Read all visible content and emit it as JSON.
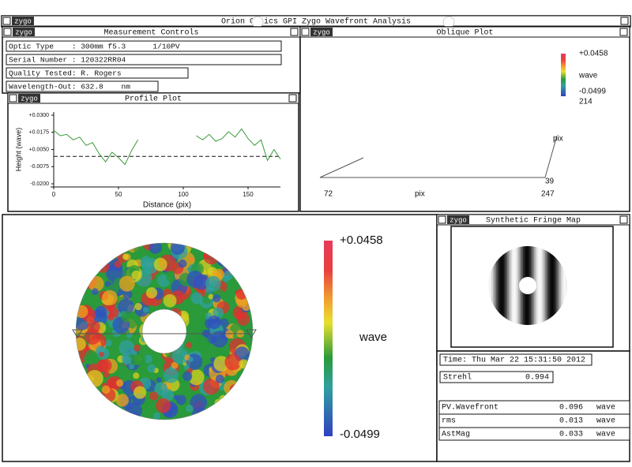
{
  "header": {
    "title": "Orion Optics GPI Zygo Wavefront Analysis",
    "logo": "zygo"
  },
  "measurement_controls": {
    "title": "Measurement Controls",
    "fields": [
      "Optic Type    : 300mm f5.3      1/10PV",
      "Serial Number : 120322RR04",
      "Quality Tested: R. Rogers",
      "Wavelength-Out: 632.8    nm"
    ]
  },
  "chart_data": {
    "type": "line",
    "title": "Profile Plot",
    "x_label": "Distance (pix)",
    "y_label": "Height (wave)",
    "color": "#3a9a3a",
    "x": [
      0,
      5,
      10,
      15,
      20,
      25,
      30,
      35,
      40,
      45,
      50,
      55,
      60,
      65,
      70,
      75,
      80,
      85,
      90,
      95,
      100,
      105,
      110,
      115,
      120,
      125,
      130,
      135,
      140,
      145,
      150,
      155,
      160,
      165,
      170,
      175
    ],
    "values": [
      0.019,
      0.015,
      0.016,
      0.012,
      0.014,
      0.008,
      0.01,
      0.002,
      -0.004,
      0.003,
      -0.001,
      -0.006,
      0.004,
      0.012,
      null,
      null,
      null,
      null,
      null,
      null,
      null,
      null,
      0.015,
      0.012,
      0.016,
      0.011,
      0.013,
      0.018,
      0.014,
      0.02,
      0.013,
      0.008,
      0.012,
      -0.003,
      0.005,
      -0.002
    ],
    "xlim": [
      0,
      175
    ],
    "ylim": [
      -0.02,
      0.03
    ],
    "xticks": [
      0,
      50,
      100,
      150
    ],
    "yticks": [
      {
        "value": 0.03,
        "label": "+0.0300"
      },
      {
        "value": 0.0175,
        "label": "+0.0175"
      },
      {
        "value": 0.005,
        "label": "+0.0050"
      },
      {
        "value": -0.0075,
        "label": "-0.0075"
      },
      {
        "value": -0.02,
        "label": "-0.0200"
      }
    ]
  },
  "oblique_plot": {
    "title": "Oblique Plot",
    "scale_max": "+0.0458",
    "scale_unit": "wave",
    "scale_min": "-0.0499",
    "y_max": "214",
    "y_label": "pix",
    "y_min": "39",
    "x_min": "72",
    "x_label": "pix",
    "x_max": "247"
  },
  "surface_map": {
    "scale_max": "+0.0458",
    "scale_unit": "wave",
    "scale_min": "-0.0499"
  },
  "fringe_map": {
    "title": "Synthetic Fringe Map"
  },
  "results": {
    "time": "Time: Thu Mar 22 15:31:50 2012",
    "strehl": {
      "label": "Strehl",
      "value": "0.994"
    },
    "rows": [
      {
        "label": "PV.Wavefront",
        "value": "0.096",
        "unit": "wave"
      },
      {
        "label": "rms",
        "value": "0.013",
        "unit": "wave"
      },
      {
        "label": "AstMag",
        "value": "0.033",
        "unit": "wave"
      }
    ]
  }
}
